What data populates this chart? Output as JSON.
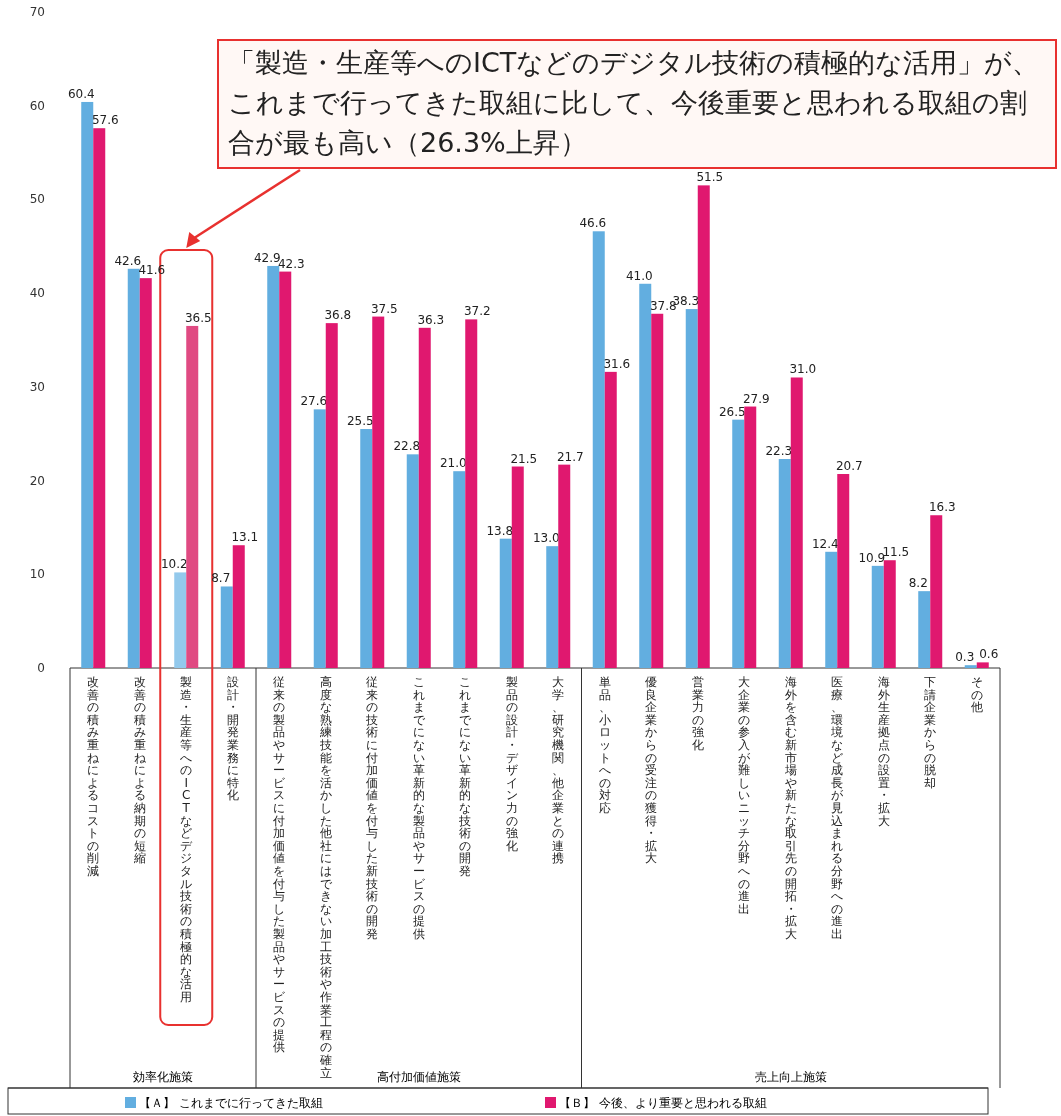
{
  "chart_data": {
    "type": "bar",
    "categories": [
      "改善の積み重ねによるコストの削減",
      "改善の積み重ねによる納期の短縮",
      "製造・生産等へのICTなどデジタル技術の積極的な活用",
      "設計・開発業務に特化",
      "従来の製品やサービスに付加価値を付与した製品やサービスの提供",
      "高度な熟練技能を活かした他社にはできない加工技術や作業工程の確立",
      "従来の技術に付加価値を付与した新技術の開発",
      "これまでにない革新的な製品やサービスの提供",
      "これまでにない革新的な技術の開発",
      "製品の設計・デザイン力の強化",
      "大学、研究機関、他企業との連携",
      "単品、小ロットへの対応",
      "優良企業からの受注の獲得・拡大",
      "営業力の強化",
      "大企業の参入が難しいニッチ分野への進出",
      "海外を含む新市場や新たな取引先の開拓・拡大",
      "医療、環境など成長が見込まれる分野への進出",
      "海外生産拠点の設置・拡大",
      "下請企業からの脱却",
      "その他"
    ],
    "series": [
      {
        "name": "【Ａ】 これまでに行ってきた取組",
        "color": "#62aee0",
        "colors": [
          "#62aee0",
          "#62aee0",
          "#93c9ec",
          "#62aee0",
          "#62aee0",
          "#62aee0",
          "#62aee0",
          "#62aee0",
          "#62aee0",
          "#62aee0",
          "#62aee0",
          "#62aee0",
          "#62aee0",
          "#62aee0",
          "#62aee0",
          "#62aee0",
          "#62aee0",
          "#62aee0",
          "#62aee0",
          "#62aee0"
        ],
        "values": [
          60.4,
          42.6,
          10.2,
          8.7,
          42.9,
          27.6,
          25.5,
          22.8,
          21.0,
          13.8,
          13.0,
          46.6,
          41.0,
          38.3,
          26.5,
          22.3,
          12.4,
          10.9,
          8.2,
          0.3
        ],
        "value_labels": [
          "60.4",
          "42.6",
          "10.2",
          "8.7",
          "42.9",
          "27.6",
          "25.5",
          "22.8",
          "21.0",
          "13.8",
          "13.0",
          "46.6",
          "41.0",
          "38.3",
          "26.5",
          "22.3",
          "12.4",
          "10.9",
          "8.2",
          "0.3"
        ]
      },
      {
        "name": "【Ｂ】 今後、より重要と思われる取組",
        "color": "#e0186f",
        "colors": [
          "#e0186f",
          "#e0186f",
          "#e04a82",
          "#e0186f",
          "#e0186f",
          "#e0186f",
          "#e0186f",
          "#e0186f",
          "#e0186f",
          "#e0186f",
          "#e0186f",
          "#e0186f",
          "#e0186f",
          "#e0186f",
          "#e0186f",
          "#e0186f",
          "#e0186f",
          "#e0186f",
          "#e0186f",
          "#e0186f"
        ],
        "values": [
          57.6,
          41.6,
          36.5,
          13.1,
          42.3,
          36.8,
          37.5,
          36.3,
          37.2,
          21.5,
          21.7,
          31.6,
          37.8,
          51.5,
          27.9,
          31.0,
          20.7,
          11.5,
          16.3,
          0.6
        ],
        "value_labels": [
          "57.6",
          "41.6",
          "36.5",
          "13.1",
          "42.3",
          "36.8",
          "37.5",
          "36.3",
          "37.2",
          "21.5",
          "21.7",
          "31.6",
          "37.8",
          "51.5",
          "27.9",
          "31.0",
          "20.7",
          "11.5",
          "16.3",
          "0.6"
        ]
      }
    ],
    "ylim": [
      0,
      70
    ],
    "yticks": [
      0,
      10,
      20,
      30,
      40,
      50,
      60,
      70
    ],
    "grid": false,
    "legend": "bottom",
    "annotations": [
      "「製造・生産等へのICTなどのデジタル技術の積極的な活用」が、これまで行ってきた取組に比して、今後重要と思われる取組の割合が最も高い（26.3%上昇）",
      "効率化施策",
      "高付加価値施策",
      "売上向上施策"
    ]
  }
}
